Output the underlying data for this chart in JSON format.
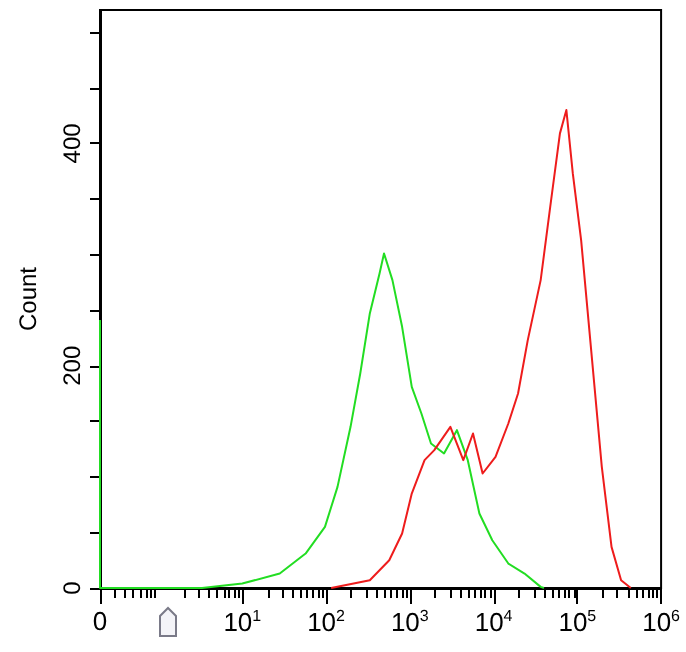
{
  "chart_data": {
    "type": "line",
    "ylabel": "Count",
    "log": "x",
    "grid": false,
    "marker": "none",
    "line_style": "solid",
    "xlim": [
      0.2,
      1000000
    ],
    "xticks": [
      {
        "value": 0.2,
        "label": "0"
      },
      {
        "value": 10,
        "label": "10$^{1}$"
      },
      {
        "value": 100,
        "label": "10$^{2}$"
      },
      {
        "value": 1000,
        "label": "10$^{3}$"
      },
      {
        "value": 10000,
        "label": "10$^{4}$"
      },
      {
        "value": 100000,
        "label": "10$^{5}$"
      },
      {
        "value": 1000000,
        "label": "10$^{6}$"
      }
    ],
    "ylim": [
      0,
      520
    ],
    "yticks": [
      0,
      {
        "value": 50,
        "label": null
      },
      {
        "value": 100,
        "label": null
      },
      {
        "value": 150,
        "label": null
      },
      200,
      {
        "value": 250,
        "label": null
      },
      {
        "value": 300,
        "label": null
      },
      {
        "value": 350,
        "label": null
      },
      400,
      {
        "value": 450,
        "label": null
      },
      {
        "value": 500,
        "label": null
      }
    ],
    "series": [
      {
        "color": "#22dd22",
        "x": [
          0.2,
          0.2,
          3.3,
          10,
          28,
          57,
          97,
          137,
          196,
          256,
          333,
          435,
          492,
          620,
          809,
          1055,
          1375,
          1790,
          2560,
          3650,
          4920,
          6770,
          9650,
          15000,
          23400,
          36500,
          40000
        ],
        "values": [
          241,
          0,
          0,
          4,
          13,
          31,
          55,
          91,
          145,
          193,
          247,
          283,
          301,
          277,
          235,
          181,
          157,
          130,
          121,
          142,
          115,
          67,
          43,
          22,
          13,
          1,
          0
        ]
      },
      {
        "color": "#ee1c1c",
        "x": [
          115,
          333,
          568,
          809,
          1055,
          1500,
          1960,
          3050,
          4350,
          5680,
          7400,
          10550,
          15000,
          19600,
          25600,
          36500,
          47500,
          62000,
          74000,
          88300,
          111000,
          150000,
          196000,
          256000,
          333000,
          435000
        ],
        "values": [
          0,
          7,
          25,
          49,
          85,
          115,
          124,
          145,
          115,
          139,
          103,
          118,
          148,
          175,
          223,
          277,
          343,
          409,
          430,
          373,
          313,
          205,
          109,
          37,
          7,
          0
        ]
      }
    ]
  }
}
